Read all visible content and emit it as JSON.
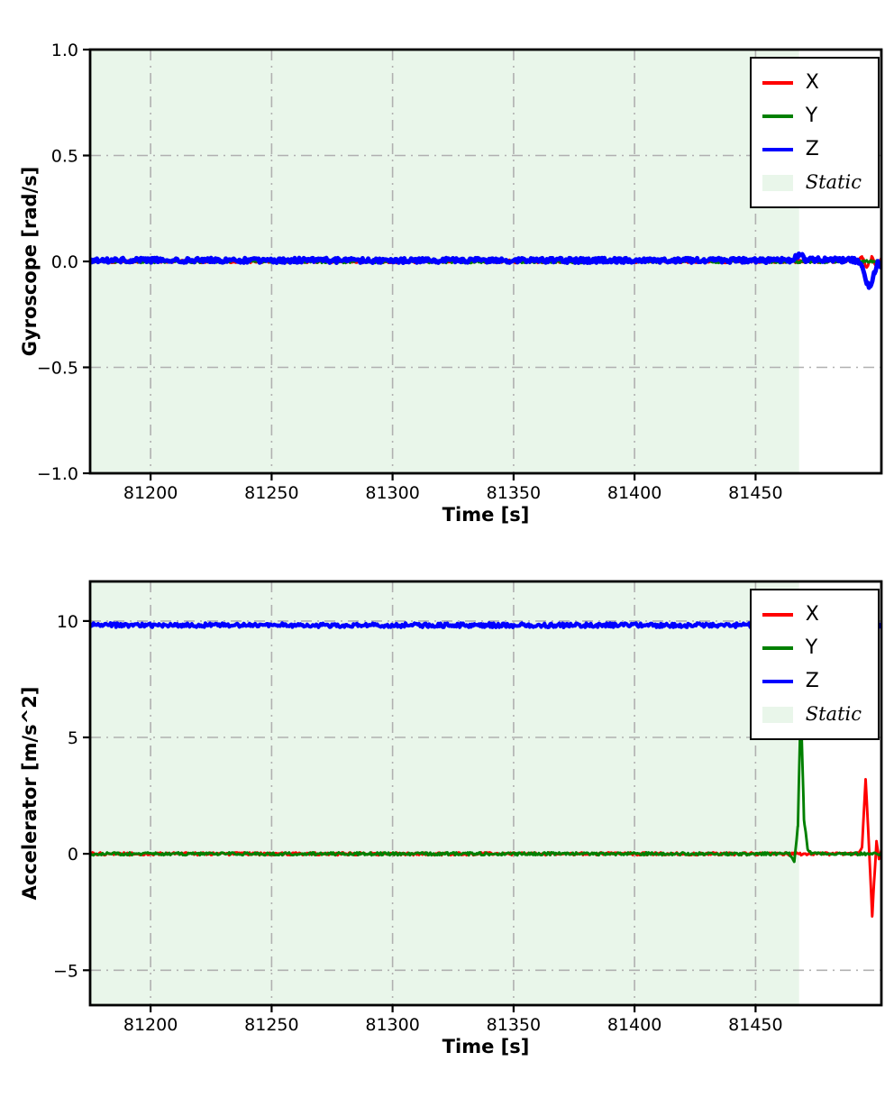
{
  "figure": {
    "background": "#ffffff"
  },
  "chart_data": [
    {
      "type": "line",
      "title": "",
      "xlabel": "Time [s]",
      "ylabel": "Gyroscope [rad/s]",
      "xlim": [
        81175,
        81502
      ],
      "ylim": [
        -1.0,
        1.0
      ],
      "xticks": [
        81200,
        81250,
        81300,
        81350,
        81400,
        81450
      ],
      "xtick_labels": [
        "81200",
        "81250",
        "81300",
        "81350",
        "81400",
        "81450"
      ],
      "yticks": [
        1.0,
        0.5,
        0.0,
        -0.5,
        -1.0
      ],
      "ytick_labels": [
        "1.0",
        "0.5",
        "0.0",
        "−0.5",
        "−1.0"
      ],
      "grid": {
        "style": "dashdot",
        "color": "#b0b0b0",
        "on": true
      },
      "static_region": {
        "label": "Static",
        "x_start": 81175,
        "x_end": 81468,
        "color": "#e9f6ea"
      },
      "series": [
        {
          "name": "X",
          "color": "#ff0000",
          "noise": 0.008,
          "x": [
            81175,
            81492,
            81494,
            81496,
            81498,
            81500,
            81502
          ],
          "y": [
            0,
            0,
            0.02,
            -0.03,
            0.02,
            -0.02,
            0.01
          ]
        },
        {
          "name": "Y",
          "color": "#008000",
          "noise": 0.008,
          "x": [
            81175,
            81502
          ],
          "y": [
            0,
            0
          ]
        },
        {
          "name": "Z",
          "color": "#0000ff",
          "noise": 0.013,
          "x": [
            81175,
            81464,
            81466.5,
            81468.5,
            81470.5,
            81492,
            81494,
            81496,
            81497.5,
            81499,
            81500.5,
            81502
          ],
          "y": [
            0.005,
            0.005,
            0.02,
            0.038,
            0.008,
            0.005,
            -0.02,
            -0.1,
            -0.125,
            -0.06,
            0.0,
            -0.03
          ]
        }
      ],
      "legend": {
        "position": "upper right",
        "entries": [
          {
            "label": "X",
            "color": "#ff0000",
            "type": "line"
          },
          {
            "label": "Y",
            "color": "#008000",
            "type": "line"
          },
          {
            "label": "Z",
            "color": "#0000ff",
            "type": "line"
          },
          {
            "label": "Static",
            "color": "#e9f6ea",
            "type": "patch"
          }
        ]
      }
    },
    {
      "type": "line",
      "title": "",
      "xlabel": "Time [s]",
      "ylabel": "Accelerator [m/s^2]",
      "xlim": [
        81175,
        81502
      ],
      "ylim": [
        -6.5,
        11.7
      ],
      "xticks": [
        81200,
        81250,
        81300,
        81350,
        81400,
        81450
      ],
      "xtick_labels": [
        "81200",
        "81250",
        "81300",
        "81350",
        "81400",
        "81450"
      ],
      "yticks": [
        10,
        5,
        0,
        -5
      ],
      "ytick_labels": [
        "10",
        "5",
        "0",
        "−5"
      ],
      "grid": {
        "style": "dashdot",
        "color": "#b0b0b0",
        "on": true
      },
      "static_region": {
        "label": "Static",
        "x_start": 81175,
        "x_end": 81468,
        "color": "#e9f6ea"
      },
      "series": [
        {
          "name": "X",
          "color": "#ff0000",
          "noise": 0.07,
          "x": [
            81175,
            81492,
            81494,
            81495.5,
            81496.5,
            81497.3,
            81498.2,
            81499,
            81500,
            81501,
            81502
          ],
          "y": [
            0,
            0,
            0.25,
            3.2,
            1.2,
            -0.6,
            -2.7,
            -1.2,
            0.5,
            -0.2,
            0.1
          ]
        },
        {
          "name": "Y",
          "color": "#008000",
          "noise": 0.07,
          "x": [
            81175,
            81464,
            81466,
            81467.5,
            81468.7,
            81470,
            81471.5,
            81473,
            81502
          ],
          "y": [
            0,
            0,
            -0.35,
            1.2,
            6.55,
            1.5,
            0.2,
            0,
            0
          ]
        },
        {
          "name": "Z",
          "color": "#0000ff",
          "noise": 0.1,
          "x": [
            81175,
            81502
          ],
          "y": [
            9.82,
            9.82
          ]
        }
      ],
      "legend": {
        "position": "upper right",
        "entries": [
          {
            "label": "X",
            "color": "#ff0000",
            "type": "line"
          },
          {
            "label": "Y",
            "color": "#008000",
            "type": "line"
          },
          {
            "label": "Z",
            "color": "#0000ff",
            "type": "line"
          },
          {
            "label": "Static",
            "color": "#e9f6ea",
            "type": "patch"
          }
        ]
      }
    }
  ]
}
